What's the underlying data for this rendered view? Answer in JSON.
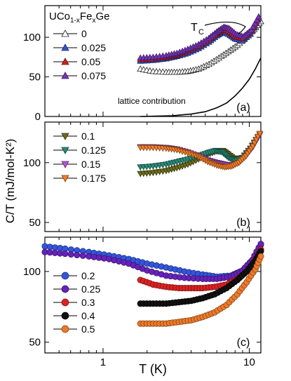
{
  "chart_data": {
    "type": "scatter",
    "xlabel": "T (K)",
    "ylabel": "C/T (mJ/mol-K²)",
    "x_scale": "log",
    "xlim": [
      0.4,
      12
    ],
    "x_ticks": [
      "1",
      "10"
    ],
    "panels": [
      {
        "id": "a",
        "label": "(a)",
        "ylim": [
          0,
          140
        ],
        "y_ticks": [
          0,
          50,
          100
        ],
        "y_scale": "linear",
        "legend_title": "UCo1-xFexGe",
        "annotations": {
          "tc_label": "T",
          "tc_sub": "C",
          "lattice": "lattice contribution"
        },
        "series": [
          {
            "name": "0",
            "marker": "triangle-up",
            "fill": "#ffffff",
            "stroke": "#222222",
            "x": [
              1.8,
              2.2,
              2.7,
              3.2,
              3.8,
              4.5,
              5.3,
              6.2,
              7.2,
              8.3,
              9.5,
              10.8,
              12.0
            ],
            "y": [
              60,
              57,
              56,
              56,
              57,
              60,
              66,
              74,
              82,
              90,
              100,
              110,
              120
            ]
          },
          {
            "name": "0.025",
            "marker": "triangle-up",
            "fill": "#3355cc",
            "stroke": "#1a2a66",
            "x": [
              1.8,
              2.2,
              2.7,
              3.2,
              3.8,
              4.5,
              5.3,
              6.0,
              6.6,
              7.2,
              8.0,
              9.0,
              10.2,
              11.5
            ],
            "y": [
              70,
              71,
              73,
              76,
              80,
              86,
              94,
              102,
              107,
              104,
              98,
              96,
              104,
              122
            ]
          },
          {
            "name": "0.05",
            "marker": "triangle-up",
            "fill": "#cc2222",
            "stroke": "#661111",
            "x": [
              1.8,
              2.2,
              2.7,
              3.2,
              3.8,
              4.5,
              5.3,
              6.0,
              6.6,
              7.2,
              8.0,
              9.0,
              10.2,
              11.5
            ],
            "y": [
              72,
              73,
              75,
              78,
              83,
              89,
              97,
              105,
              110,
              108,
              101,
              99,
              107,
              124
            ]
          },
          {
            "name": "0.075",
            "marker": "triangle-up",
            "fill": "#7733bb",
            "stroke": "#3a1a5e",
            "x": [
              1.8,
              2.2,
              2.7,
              3.2,
              3.8,
              4.5,
              5.3,
              6.0,
              6.7,
              7.3,
              8.1,
              9.1,
              10.3,
              11.6
            ],
            "y": [
              74,
              75,
              77,
              80,
              85,
              91,
              99,
              107,
              113,
              111,
              104,
              101,
              109,
              126
            ]
          }
        ],
        "lattice": {
          "x": [
            1.8,
            3,
            4,
            5,
            6,
            7,
            8,
            9,
            10,
            11,
            12
          ],
          "y": [
            0,
            1,
            3,
            6,
            11,
            17,
            26,
            36,
            47,
            60,
            74
          ]
        }
      },
      {
        "id": "b",
        "label": "(b)",
        "ylim": [
          45,
          160
        ],
        "y_ticks": [
          50,
          100
        ],
        "y_scale": "log",
        "series": [
          {
            "name": "0.1",
            "marker": "triangle-down",
            "fill": "#6b6b1a",
            "stroke": "#33330a",
            "x": [
              1.8,
              2.2,
              2.7,
              3.2,
              3.8,
              4.5,
              5.2,
              6.0,
              6.6,
              7.2,
              8.0,
              9.0,
              10.2,
              11.5
            ],
            "y": [
              88,
              89,
              91,
              94,
              98,
              104,
              110,
              114,
              115,
              110,
              104,
              106,
              118,
              135
            ]
          },
          {
            "name": "0.125",
            "marker": "triangle-down",
            "fill": "#2a8a78",
            "stroke": "#12453c",
            "x": [
              1.8,
              2.2,
              2.7,
              3.2,
              3.8,
              4.5,
              5.2,
              5.9,
              6.5,
              7.2,
              8.0,
              9.0,
              10.2,
              11.5
            ],
            "y": [
              95,
              96,
              98,
              101,
              104,
              108,
              112,
              115,
              113,
              106,
              102,
              105,
              117,
              134
            ]
          },
          {
            "name": "0.15",
            "marker": "triangle-down",
            "fill": "#b455d8",
            "stroke": "#5a2a6c",
            "x": [
              1.8,
              2.2,
              2.7,
              3.2,
              3.8,
              4.5,
              5.2,
              6.0,
              6.8,
              7.6,
              8.5,
              9.5,
              10.6,
              11.8
            ],
            "y": [
              120,
              120,
              119,
              117,
              113,
              108,
              103,
              100,
              98,
              97,
              100,
              108,
              120,
              138
            ]
          },
          {
            "name": "0.175",
            "marker": "triangle-down",
            "fill": "#f07f2a",
            "stroke": "#803e10",
            "x": [
              1.8,
              2.2,
              2.7,
              3.2,
              3.8,
              4.5,
              5.2,
              6.0,
              6.8,
              7.6,
              8.5,
              9.5,
              10.6,
              11.8
            ],
            "y": [
              119,
              119,
              118,
              116,
              112,
              107,
              101,
              97,
              95,
              96,
              100,
              108,
              121,
              140
            ]
          }
        ]
      },
      {
        "id": "c",
        "label": "(c)",
        "ylim": [
          45,
          140
        ],
        "y_ticks": [
          50,
          100
        ],
        "y_scale": "log",
        "series": [
          {
            "name": "0.2",
            "marker": "circle",
            "fill": "#3355dd",
            "stroke": "#1a2a6e",
            "line": true,
            "x": [
              0.4,
              0.55,
              0.8,
              1.1,
              1.5,
              2.0,
              2.7,
              3.6,
              4.8,
              6.0,
              7.5,
              9.0,
              10.5,
              12.0
            ],
            "y": [
              128,
              125,
              121,
              117,
              113,
              108,
              104,
              100,
              97,
              95,
              96,
              101,
              112,
              130
            ]
          },
          {
            "name": "0.25",
            "marker": "circle",
            "fill": "#6622bb",
            "stroke": "#33115e",
            "line": true,
            "x": [
              0.4,
              0.55,
              0.8,
              1.1,
              1.5,
              2.0,
              2.7,
              3.6,
              4.8,
              6.0,
              7.5,
              9.0,
              10.5,
              12.0
            ],
            "y": [
              121,
              119,
              116,
              113,
              108,
              101,
              96,
              94,
              93,
              93,
              95,
              101,
              112,
              131
            ]
          },
          {
            "name": "0.3",
            "marker": "circle",
            "fill": "#dd2222",
            "stroke": "#6e1111",
            "line": true,
            "x": [
              1.8,
              2.2,
              2.7,
              3.3,
              4.0,
              4.8,
              5.8,
              7.0,
              8.3,
              9.6,
              11.0,
              12.0
            ],
            "y": [
              92,
              88,
              86,
              85,
              85,
              85,
              86,
              88,
              93,
              100,
              112,
              124
            ]
          },
          {
            "name": "0.4",
            "marker": "circle",
            "fill": "#111111",
            "stroke": "#000000",
            "line": true,
            "x": [
              1.8,
              2.2,
              2.7,
              3.3,
              4.0,
              4.8,
              5.8,
              7.0,
              8.3,
              9.6,
              11.0,
              12.0
            ],
            "y": [
              73,
              73,
              73,
              74,
              75,
              77,
              80,
              85,
              92,
              100,
              111,
              122
            ]
          },
          {
            "name": "0.5",
            "marker": "circle",
            "fill": "#ee7a2a",
            "stroke": "#7a3d10",
            "line": true,
            "x": [
              1.8,
              2.2,
              2.7,
              3.3,
              4.0,
              4.8,
              5.8,
              7.0,
              8.3,
              9.6,
              11.0,
              12.0
            ],
            "y": [
              60,
              60,
              60,
              61,
              62,
              64,
              67,
              72,
              80,
              90,
              102,
              116
            ]
          }
        ]
      }
    ]
  }
}
